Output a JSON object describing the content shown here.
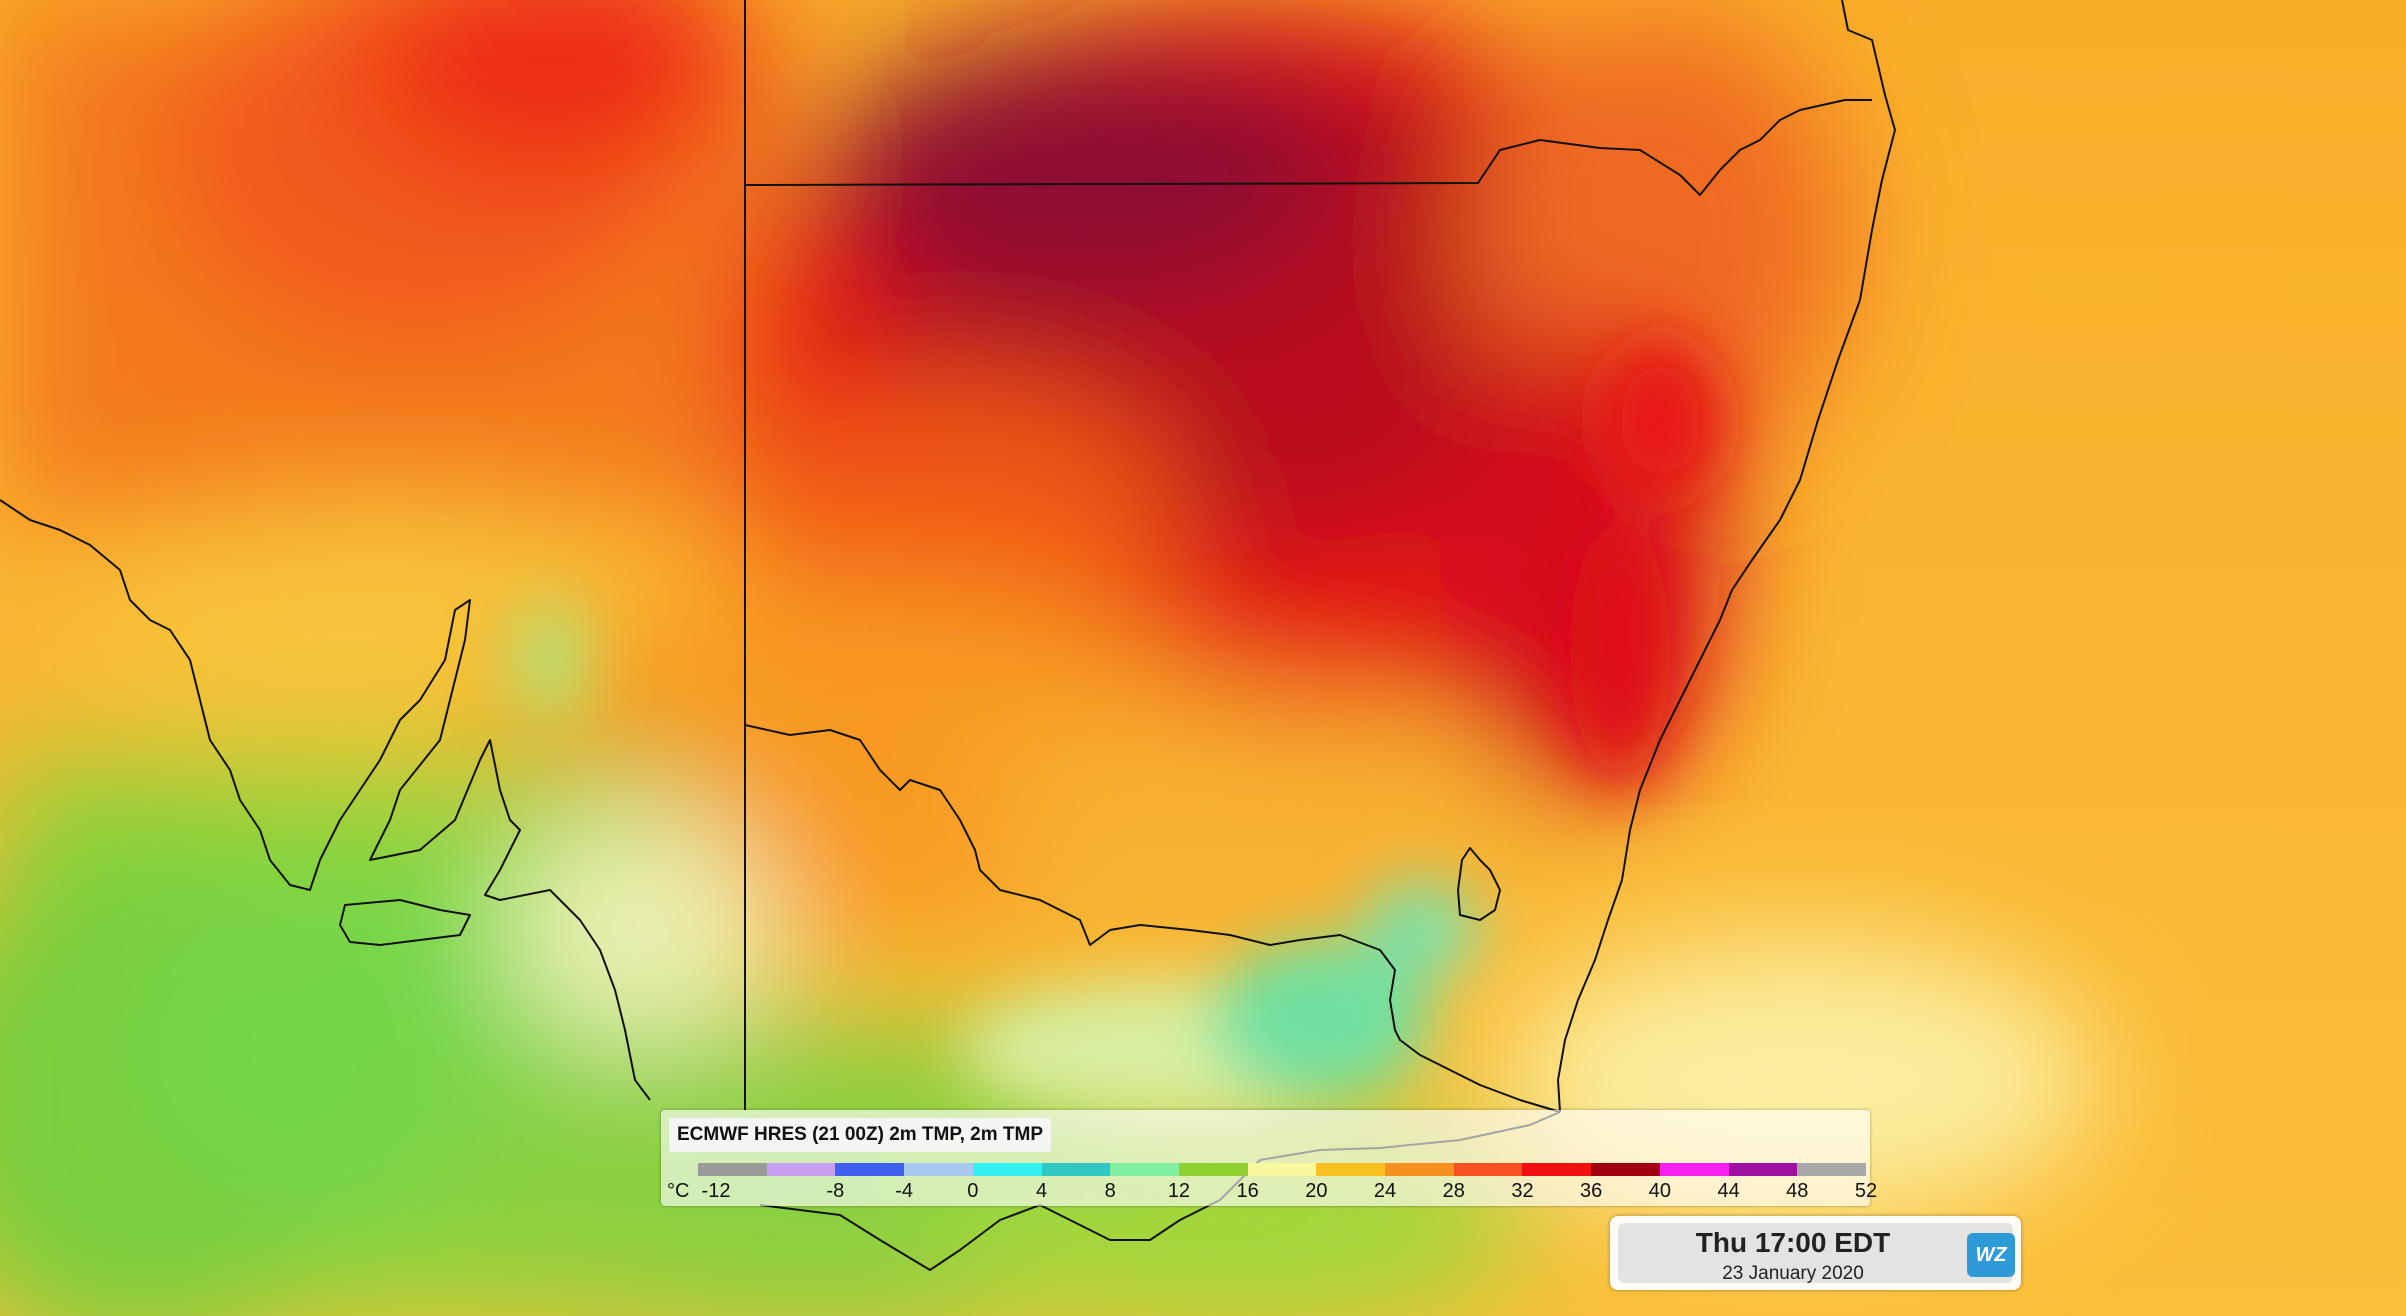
{
  "legend": {
    "title": "ECMWF HRES (21 00Z) 2m TMP, 2m TMP",
    "unit": "°C",
    "ticks": [
      "-12",
      "-8",
      "-4",
      "0",
      "4",
      "8",
      "12",
      "16",
      "20",
      "24",
      "28",
      "32",
      "36",
      "40",
      "44",
      "48",
      "52"
    ],
    "colors": [
      "#9a9a9a",
      "#c8a0f0",
      "#4060f0",
      "#a8c8f0",
      "#30f0f0",
      "#30c8c0",
      "#80f0a0",
      "#90d030",
      "#f8f8a0",
      "#f8c020",
      "#f89020",
      "#f85020",
      "#f01010",
      "#a00010",
      "#f820f0",
      "#a010a0",
      "#a8a8a8"
    ]
  },
  "timestamp": {
    "time": "Thu 17:00 EDT",
    "date": "23 January 2020",
    "logo": "WZ"
  }
}
